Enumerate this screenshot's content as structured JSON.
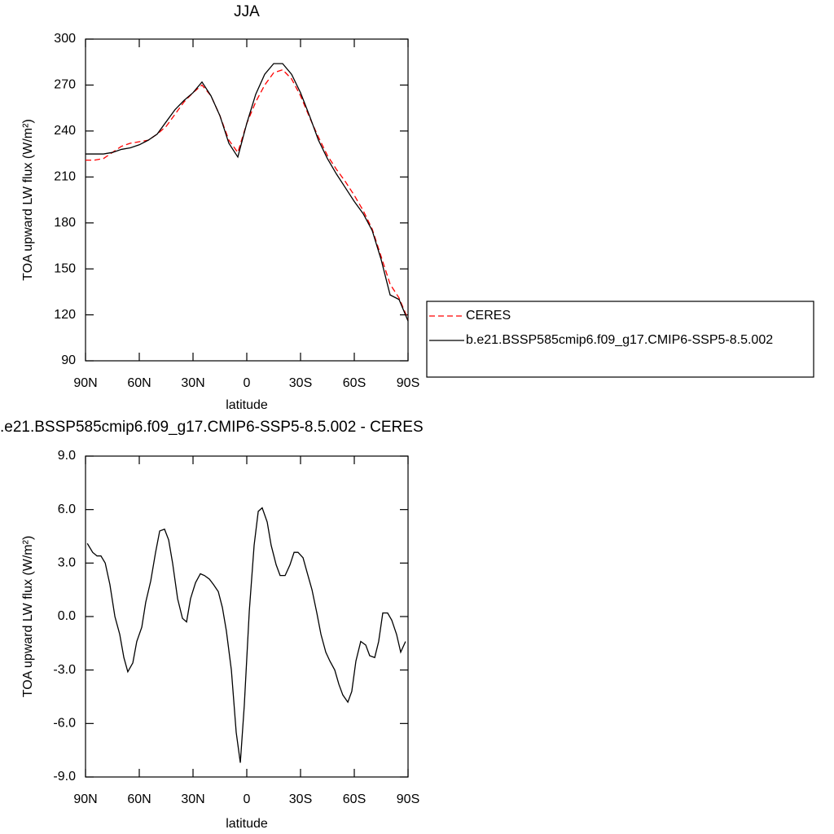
{
  "chart_data": [
    {
      "type": "line",
      "title": "JJA",
      "xlabel": "latitude",
      "ylabel": "TOA upward LW flux (W/m²)",
      "x": [
        90,
        85,
        80,
        75,
        70,
        65,
        60,
        55,
        50,
        45,
        40,
        35,
        30,
        25,
        20,
        15,
        10,
        5,
        0,
        -5,
        -10,
        -15,
        -20,
        -25,
        -30,
        -35,
        -40,
        -45,
        -50,
        -55,
        -60,
        -65,
        -70,
        -75,
        -80,
        -85,
        -90
      ],
      "series": [
        {
          "name": "CERES",
          "color": "#ff0000",
          "dash": true,
          "values": [
            221,
            221,
            222,
            226,
            230,
            232,
            233,
            234,
            238,
            243,
            251,
            259,
            265,
            270,
            263,
            250,
            234,
            226,
            245,
            259,
            270,
            278,
            280,
            274,
            263,
            249,
            236,
            224,
            215,
            207,
            198,
            188,
            176,
            158,
            140,
            131,
            117
          ]
        },
        {
          "name": "b.e21.BSSP585cmip6.f09_g17.CMIP6-SSP5-8.5.002",
          "color": "#000000",
          "dash": false,
          "values": [
            225,
            225,
            225,
            226,
            228,
            229,
            231,
            234,
            238,
            246,
            254,
            260,
            265,
            272,
            263,
            250,
            232,
            223,
            245,
            264,
            277,
            284,
            284,
            277,
            265,
            250,
            234,
            222,
            212,
            203,
            194,
            186,
            175,
            156,
            133,
            130,
            116
          ]
        }
      ],
      "xlim": [
        90,
        -90
      ],
      "xticks": [
        {
          "value": 90,
          "label": "90N"
        },
        {
          "value": 60,
          "label": "60N"
        },
        {
          "value": 30,
          "label": "30N"
        },
        0,
        {
          "value": -30,
          "label": "30S"
        },
        {
          "value": -60,
          "label": "60S"
        },
        {
          "value": -90,
          "label": "90S"
        }
      ],
      "ylim": [
        90,
        300
      ],
      "yticks": [
        90,
        120,
        150,
        180,
        210,
        240,
        270,
        300
      ],
      "legend": "right"
    },
    {
      "type": "line",
      "title": ".e21.BSSP585cmip6.f09_g17.CMIP6-SSP5-8.5.002 - CERES",
      "xlabel": "latitude",
      "ylabel": "TOA upward LW flux (W/m²)",
      "x": [
        89,
        86,
        83.6,
        81.4,
        79,
        76.4,
        73.6,
        70.9,
        68.6,
        66.4,
        63.6,
        61.4,
        58.6,
        56.4,
        53.6,
        50.9,
        48.6,
        45.9,
        43.6,
        41.4,
        38.6,
        35.9,
        33.6,
        31.4,
        28.6,
        25.9,
        23.6,
        20.9,
        18.6,
        15.9,
        13.6,
        11.4,
        8.6,
        5.9,
        3.6,
        1.4,
        -1.4,
        -4.1,
        -6.4,
        -8.6,
        -11.4,
        -13.6,
        -16.4,
        -18.6,
        -21.4,
        -24.1,
        -26.4,
        -28.6,
        -31.4,
        -33.6,
        -36.4,
        -39.1,
        -41.4,
        -44.1,
        -46.4,
        -49.1,
        -51.4,
        -53.6,
        -56.4,
        -58.6,
        -60.9,
        -63.6,
        -66.4,
        -68.6,
        -71.4,
        -73.6,
        -75.9,
        -78.6,
        -80.9,
        -83.6,
        -85.9,
        -88.6
      ],
      "series": [
        {
          "color": "#000000",
          "dash": false,
          "values": [
            4.1,
            3.6,
            3.4,
            3.4,
            3.0,
            1.8,
            0.0,
            -1.0,
            -2.3,
            -3.1,
            -2.6,
            -1.4,
            -0.6,
            0.8,
            2.0,
            3.6,
            4.8,
            4.9,
            4.3,
            3.0,
            1.0,
            -0.1,
            -0.3,
            1.0,
            1.9,
            2.4,
            2.3,
            2.1,
            1.8,
            1.4,
            0.5,
            -0.8,
            -3.0,
            -6.5,
            -8.2,
            -5.0,
            0.3,
            4.0,
            5.9,
            6.1,
            5.3,
            4.0,
            2.9,
            2.3,
            2.3,
            2.9,
            3.6,
            3.6,
            3.3,
            2.5,
            1.5,
            0.2,
            -1.0,
            -2.0,
            -2.5,
            -3.0,
            -3.8,
            -4.4,
            -4.8,
            -4.2,
            -2.5,
            -1.4,
            -1.6,
            -2.2,
            -2.3,
            -1.4,
            0.2,
            0.2,
            -0.2,
            -1.0,
            -2.0,
            -1.4
          ]
        }
      ],
      "xlim": [
        90,
        -90
      ],
      "xticks": [
        {
          "value": 90,
          "label": "90N"
        },
        {
          "value": 60,
          "label": "60N"
        },
        {
          "value": 30,
          "label": "30N"
        },
        0,
        {
          "value": -30,
          "label": "30S"
        },
        {
          "value": -60,
          "label": "60S"
        },
        {
          "value": -90,
          "label": "90S"
        }
      ],
      "ylim": [
        -9,
        9
      ],
      "yticks": [
        {
          "value": -9,
          "label": "-9.0"
        },
        {
          "value": -6,
          "label": "-6.0"
        },
        {
          "value": -3,
          "label": "-3.0"
        },
        {
          "value": 0,
          "label": "0.0"
        },
        {
          "value": 3,
          "label": "3.0"
        },
        {
          "value": 6,
          "label": "6.0"
        },
        {
          "value": 9,
          "label": "9.0"
        }
      ]
    }
  ]
}
